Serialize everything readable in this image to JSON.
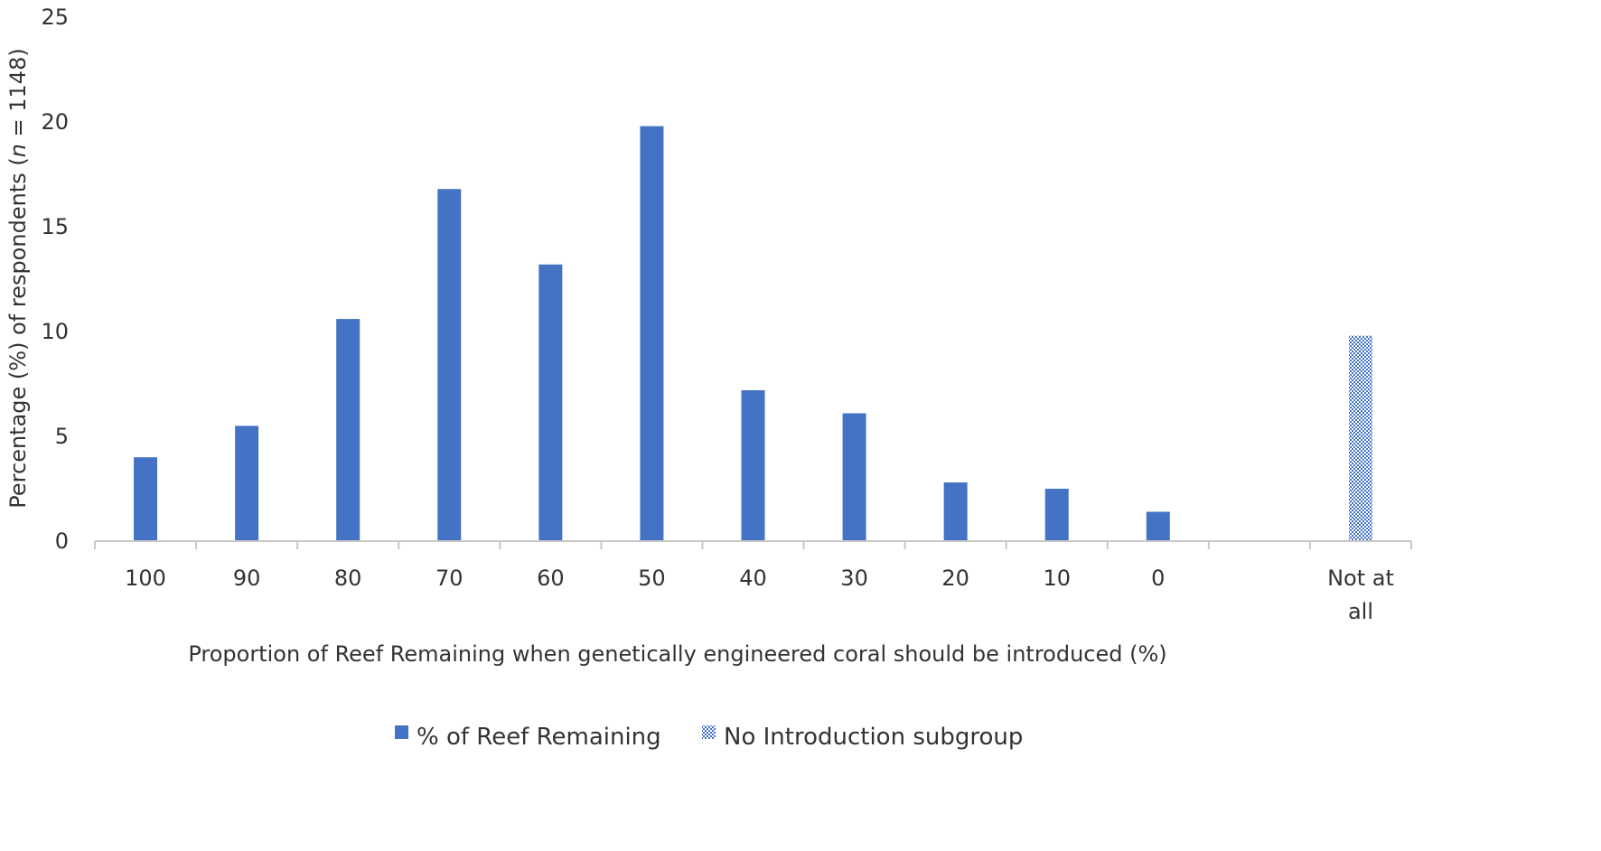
{
  "chart_data": {
    "type": "bar",
    "categories": [
      "100",
      "90",
      "80",
      "70",
      "60",
      "50",
      "40",
      "30",
      "20",
      "10",
      "0",
      "",
      "Not at all"
    ],
    "series": [
      {
        "name": "% of Reef Remaining",
        "values": [
          4.0,
          5.5,
          10.6,
          16.8,
          13.2,
          19.8,
          7.2,
          6.1,
          2.8,
          2.5,
          1.4,
          null,
          null
        ],
        "color": "#4472C4",
        "pattern": "solid"
      },
      {
        "name": "No Introduction subgroup",
        "values": [
          null,
          null,
          null,
          null,
          null,
          null,
          null,
          null,
          null,
          null,
          null,
          null,
          9.8
        ],
        "color": "#4472C4",
        "pattern": "dotted"
      }
    ],
    "title": "",
    "xlabel": "Proportion of Reef Remaining when genetically engineered coral should be introduced (%)",
    "ylabel": "Percentage (%) of respondents (n = 1148)",
    "ylabel_parts": [
      "Percentage (%) of respondents  (",
      "n",
      " = 1148)"
    ],
    "ylim": [
      0,
      25
    ],
    "yticks": [
      0,
      5,
      10,
      15,
      20,
      25
    ],
    "grid": false,
    "legend_position": "bottom"
  }
}
